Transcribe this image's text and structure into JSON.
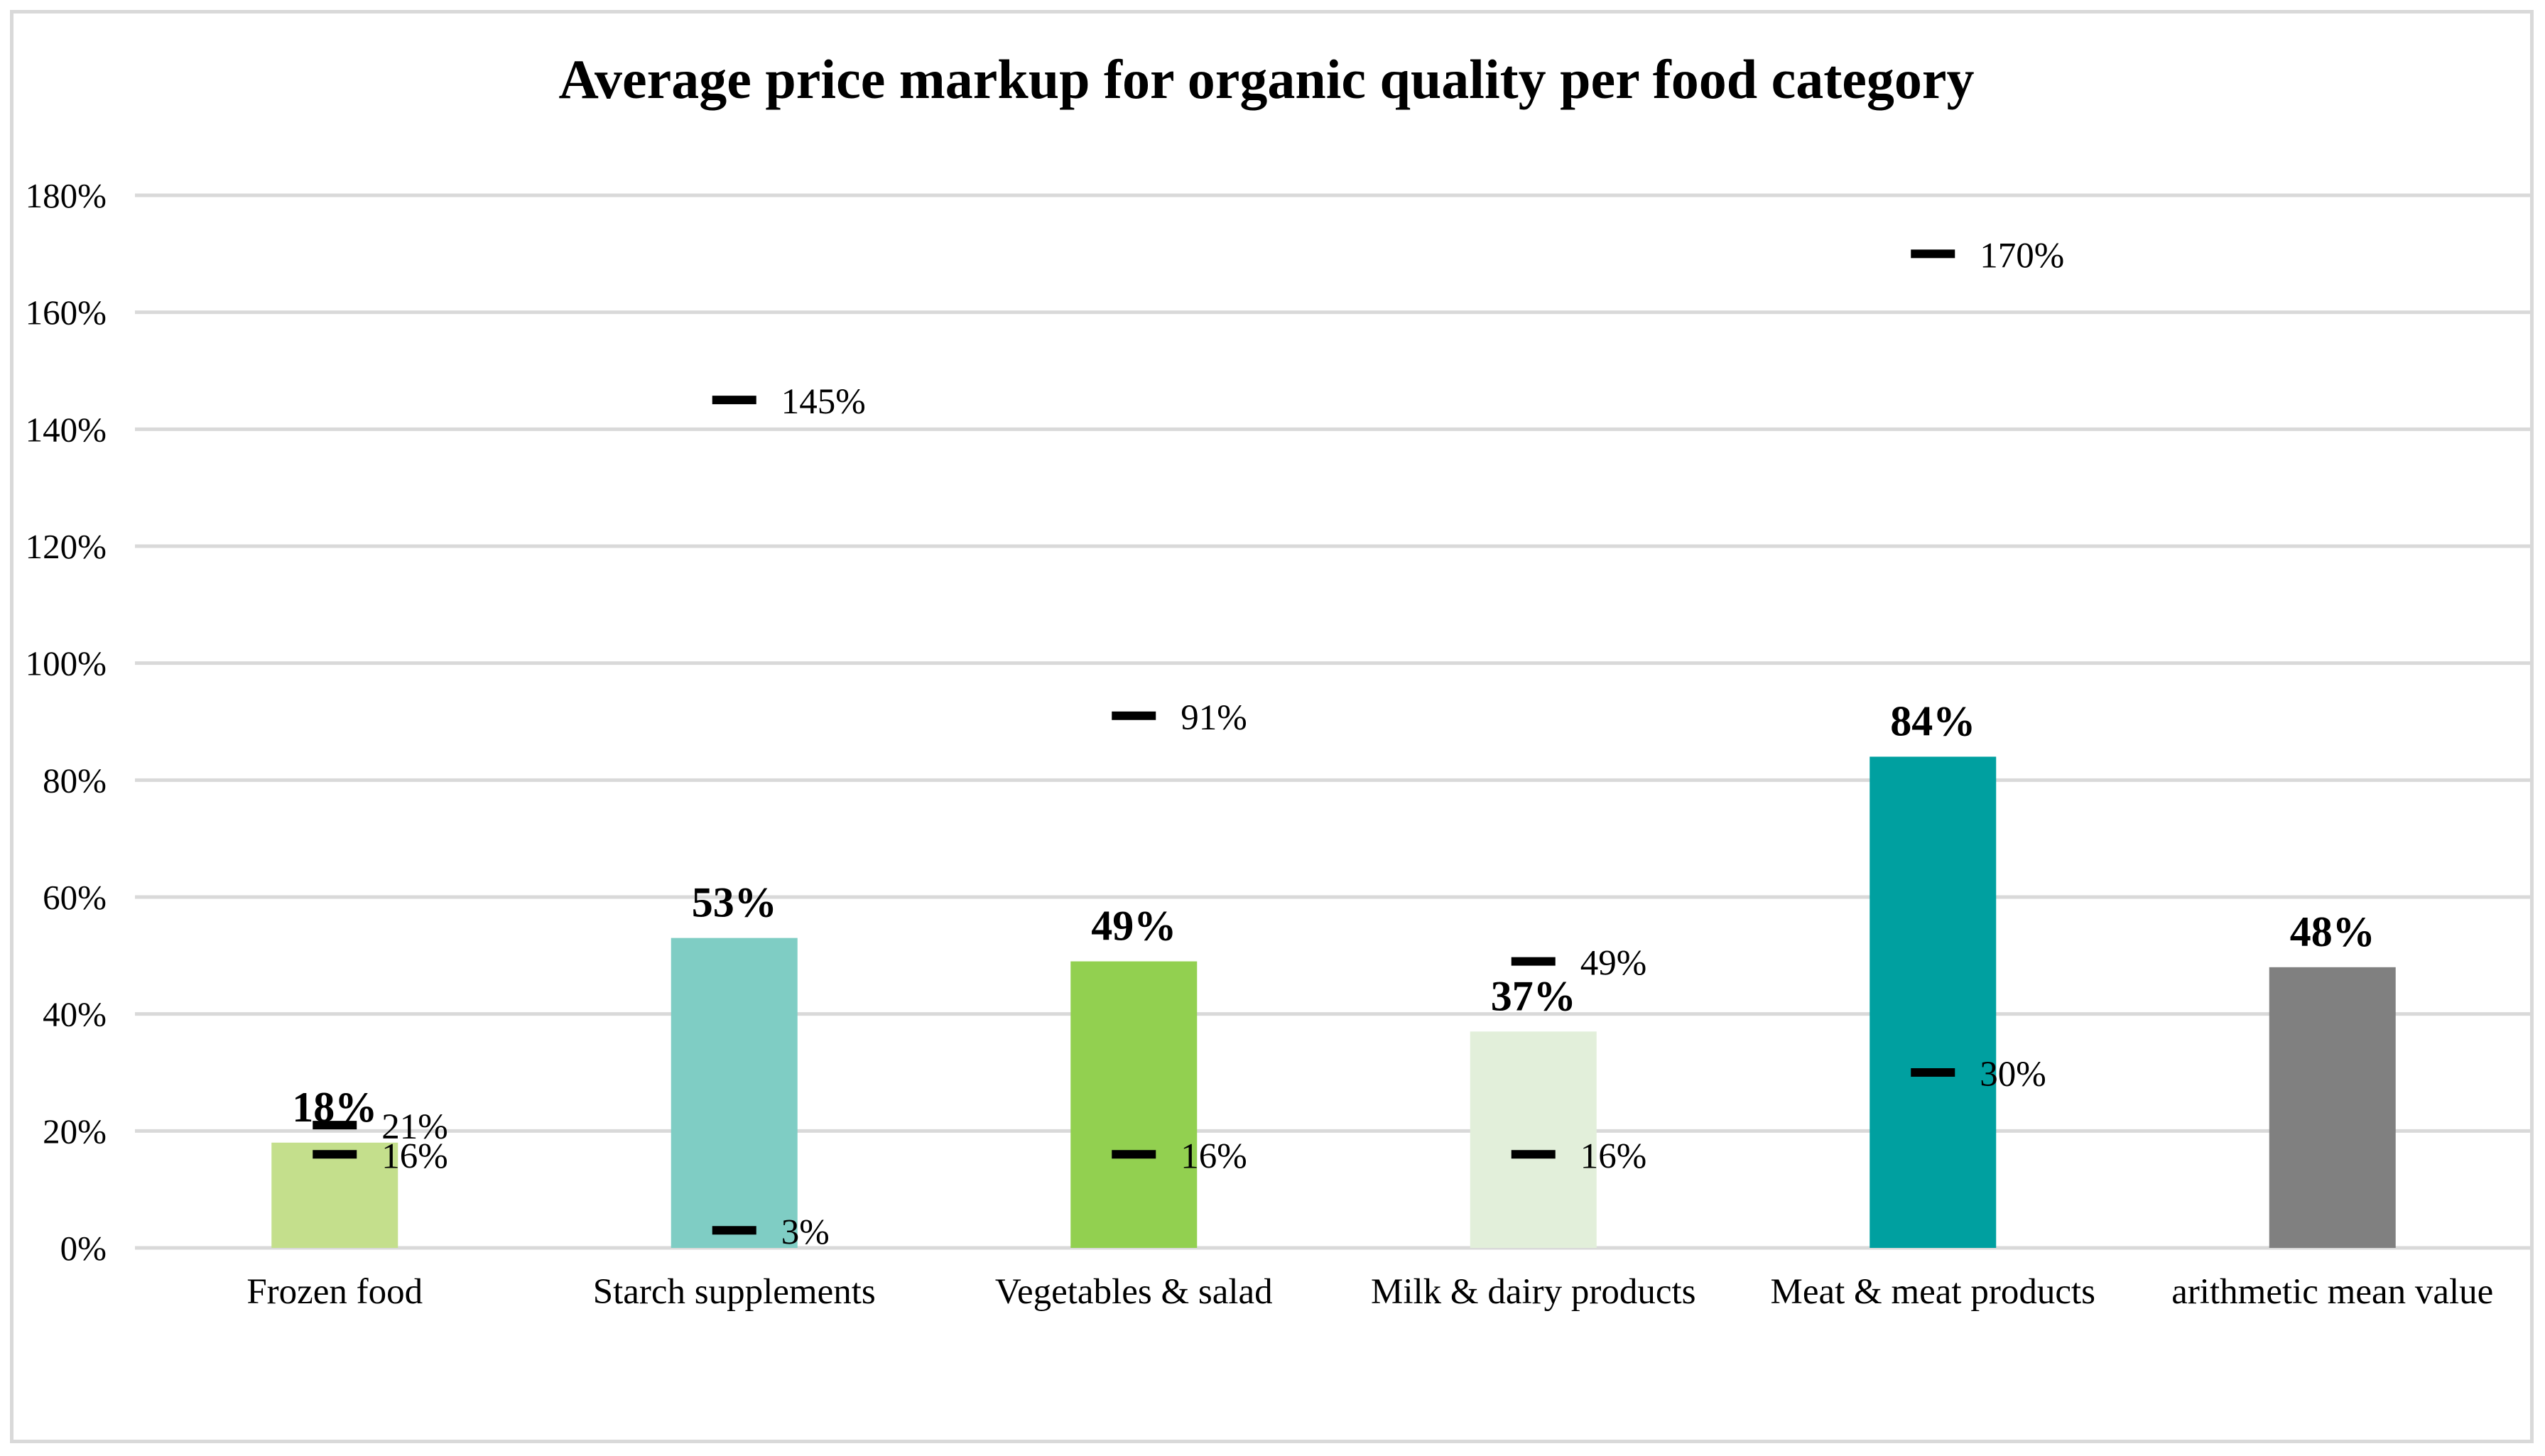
{
  "chart_data": {
    "type": "bar",
    "title": "Average price markup  for organic quality per food category",
    "xlabel": "",
    "ylabel": "",
    "ylim": [
      0,
      180
    ],
    "y_ticks": [
      0,
      20,
      40,
      60,
      80,
      100,
      120,
      140,
      160,
      180
    ],
    "y_tick_labels": [
      "0%",
      "20%",
      "40%",
      "60%",
      "80%",
      "100%",
      "120%",
      "140%",
      "160%",
      "180%"
    ],
    "grid": true,
    "legend": "none",
    "categories": [
      "Frozen food",
      "Starch supplements",
      "Vegetables & salad",
      "Milk & dairy products",
      "Meat & meat products",
      "arithmetic mean value"
    ],
    "series": [
      {
        "name": "Average markup",
        "values": [
          18,
          53,
          49,
          37,
          84,
          48
        ],
        "labels": [
          "18%",
          "53%",
          "49%",
          "37%",
          "84%",
          "48%"
        ],
        "colors": [
          "#c4df8c",
          "#7fcdc4",
          "#92d050",
          "#e2efda",
          "#00a0a0",
          "#808080"
        ]
      },
      {
        "name": "Maximum markup",
        "values": [
          21,
          145,
          91,
          49,
          170,
          null
        ],
        "labels": [
          "21%",
          "145%",
          "91%",
          "49%",
          "170%",
          null
        ]
      },
      {
        "name": "Minimum markup",
        "values": [
          16,
          3,
          16,
          16,
          30,
          null
        ],
        "labels": [
          "16%",
          "3%",
          "16%",
          "16%",
          "30%",
          null
        ]
      }
    ]
  }
}
